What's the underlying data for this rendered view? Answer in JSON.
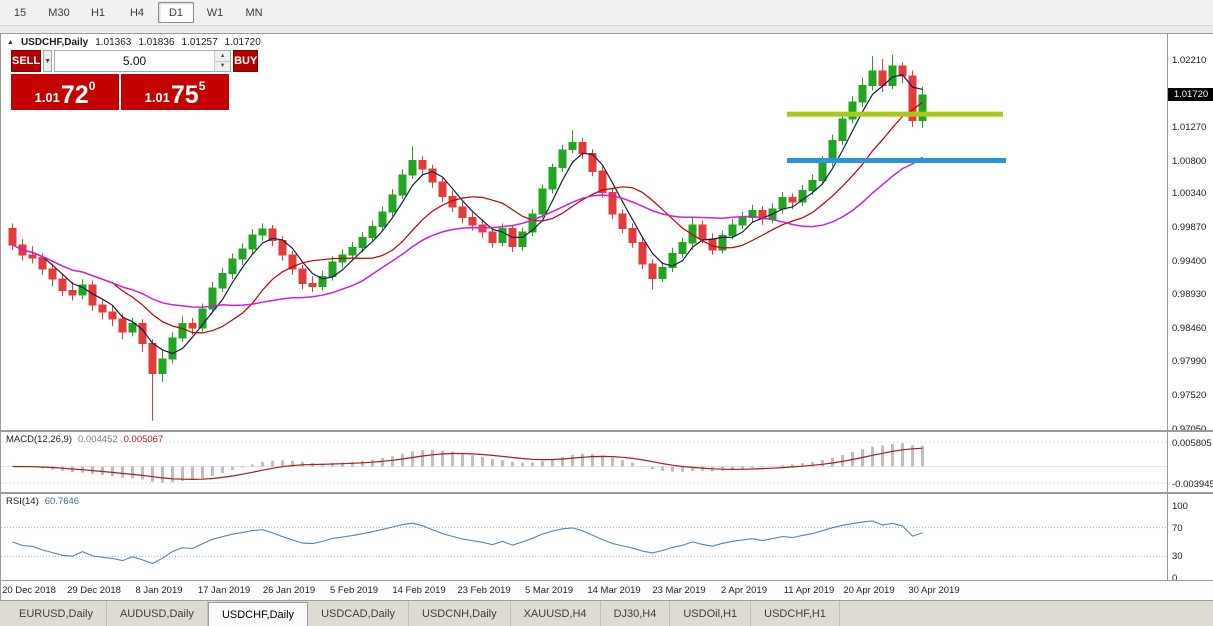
{
  "toolbar": {
    "timeframes": [
      {
        "label": "15",
        "active": false
      },
      {
        "label": "M30",
        "active": false
      },
      {
        "label": "H1",
        "active": false
      },
      {
        "label": "H4",
        "active": false
      },
      {
        "label": "D1",
        "active": true
      },
      {
        "label": "W1",
        "active": false
      },
      {
        "label": "MN",
        "active": false
      }
    ]
  },
  "chart_header": {
    "collapse_icon": "▲",
    "symbol": "USDCHF,Daily",
    "open": "1.01363",
    "high": "1.01836",
    "low": "1.01257",
    "close": "1.01720"
  },
  "trade_panel": {
    "sell_label": "SELL",
    "buy_label": "BUY",
    "volume": "5.00",
    "dropdown_icon": "▼",
    "spin_up": "▲",
    "spin_down": "▼",
    "sell_price": {
      "prefix": "1.01",
      "big": "72",
      "sup": "0"
    },
    "buy_price": {
      "prefix": "1.01",
      "big": "75",
      "sup": "5"
    }
  },
  "macd_display": {
    "label": "MACD(12,26,9)",
    "value_main": "0.004452",
    "value_signal": "0.005067"
  },
  "rsi_display": {
    "label": "RSI(14)",
    "value": "60.7646"
  },
  "tabs": [
    {
      "label": "EURUSD,Daily",
      "active": false
    },
    {
      "label": "AUDUSD,Daily",
      "active": false
    },
    {
      "label": "USDCHF,Daily",
      "active": true
    },
    {
      "label": "USDCAD,Daily",
      "active": false
    },
    {
      "label": "USDCNH,Daily",
      "active": false
    },
    {
      "label": "XAUUSD,H4",
      "active": false
    },
    {
      "label": "DJ30,H4",
      "active": false
    },
    {
      "label": "USDOil,H1",
      "active": false
    },
    {
      "label": "USDCHF,H1",
      "active": false
    }
  ],
  "chart_data": {
    "type": "candlestick",
    "symbol": "USDCHF",
    "timeframe": "Daily",
    "colors": {
      "up": "#1fa51f",
      "down": "#e33a3a"
    },
    "y_axis": {
      "top": 1.0257,
      "bottom": 0.9703,
      "labels": [
        1.0221,
        1.0127,
        1.008,
        1.0034,
        0.9987,
        0.994,
        0.9893,
        0.9846,
        0.9799,
        0.9752,
        0.9705
      ],
      "current": 1.0172,
      "current_label": "1.01720"
    },
    "x_axis": {
      "ticks": [
        {
          "index": 2,
          "label": "20 Dec 2018"
        },
        {
          "index": 8.5,
          "label": "29 Dec 2018"
        },
        {
          "index": 15,
          "label": "8 Jan 2019"
        },
        {
          "index": 21.5,
          "label": "17 Jan 2019"
        },
        {
          "index": 28,
          "label": "26 Jan 2019"
        },
        {
          "index": 34.5,
          "label": "5 Feb 2019"
        },
        {
          "index": 41,
          "label": "14 Feb 2019"
        },
        {
          "index": 47.5,
          "label": "23 Feb 2019"
        },
        {
          "index": 54,
          "label": "5 Mar 2019"
        },
        {
          "index": 60.5,
          "label": "14 Mar 2019"
        },
        {
          "index": 67,
          "label": "23 Mar 2019"
        },
        {
          "index": 73.5,
          "label": "2 Apr 2019"
        },
        {
          "index": 80,
          "label": "11 Apr 2019"
        },
        {
          "index": 86,
          "label": "20 Apr 2019"
        },
        {
          "index": 92.5,
          "label": "30 Apr 2019"
        }
      ]
    },
    "moving_averages": [
      {
        "period": 4,
        "color": "#1a1a4e",
        "width": 1.2
      },
      {
        "period": 11,
        "color": "#c00000",
        "width": 1.2
      },
      {
        "period": 22,
        "color": "#d020d0",
        "width": 1.5
      }
    ],
    "levels": [
      {
        "price": 1.0145,
        "color": "#aac816",
        "thickness": 5,
        "from_index": 77.8,
        "to_index": 99.4
      },
      {
        "price": 1.008,
        "color": "#2b93d8",
        "thickness": 5,
        "from_index": 77.8,
        "to_index": 99.7
      }
    ],
    "macd_panel": {
      "top": 0.0082,
      "bottom": -0.0056,
      "axis_values": [
        0.005805,
        -0.003945
      ],
      "axis_labels": [
        "0.005805",
        "-0.003945"
      ],
      "hist_color": "#bfbfbf",
      "signal_color": "#a22020"
    },
    "rsi_panel": {
      "line_color": "#4a86b8",
      "levels": [
        70,
        30
      ],
      "axis_values": [
        100,
        70,
        30,
        0
      ],
      "axis_labels": [
        "100",
        "70",
        "30",
        "0"
      ]
    },
    "candles": [
      [
        0.9985,
        0.9992,
        0.9955,
        0.9962
      ],
      [
        0.9962,
        0.997,
        0.994,
        0.9948
      ],
      [
        0.9948,
        0.996,
        0.9936,
        0.9944
      ],
      [
        0.9944,
        0.995,
        0.992,
        0.9928
      ],
      [
        0.9928,
        0.9936,
        0.9904,
        0.9914
      ],
      [
        0.9914,
        0.9922,
        0.989,
        0.9898
      ],
      [
        0.9898,
        0.991,
        0.9884,
        0.9892
      ],
      [
        0.9892,
        0.9914,
        0.9886,
        0.9906
      ],
      [
        0.9906,
        0.9912,
        0.987,
        0.9878
      ],
      [
        0.9878,
        0.9886,
        0.9858,
        0.9868
      ],
      [
        0.9868,
        0.9876,
        0.9848,
        0.9858
      ],
      [
        0.9858,
        0.9866,
        0.983,
        0.984
      ],
      [
        0.984,
        0.986,
        0.9834,
        0.9852
      ],
      [
        0.9852,
        0.9858,
        0.9812,
        0.9824
      ],
      [
        0.9824,
        0.983,
        0.9716,
        0.9782
      ],
      [
        0.9782,
        0.9814,
        0.977,
        0.9802
      ],
      [
        0.9802,
        0.984,
        0.9796,
        0.9832
      ],
      [
        0.9832,
        0.9862,
        0.9826,
        0.9852
      ],
      [
        0.9852,
        0.986,
        0.9836,
        0.9846
      ],
      [
        0.9846,
        0.988,
        0.984,
        0.9872
      ],
      [
        0.9872,
        0.991,
        0.9866,
        0.9902
      ],
      [
        0.9902,
        0.993,
        0.9896,
        0.9922
      ],
      [
        0.9922,
        0.995,
        0.9914,
        0.9942
      ],
      [
        0.9942,
        0.9964,
        0.9934,
        0.9956
      ],
      [
        0.9956,
        0.9984,
        0.995,
        0.9976
      ],
      [
        0.9976,
        0.9992,
        0.9968,
        0.9984
      ],
      [
        0.9984,
        0.999,
        0.996,
        0.9968
      ],
      [
        0.9968,
        0.9974,
        0.994,
        0.9948
      ],
      [
        0.9948,
        0.9954,
        0.992,
        0.9928
      ],
      [
        0.9928,
        0.9934,
        0.99,
        0.9908
      ],
      [
        0.9908,
        0.9918,
        0.9896,
        0.9904
      ],
      [
        0.9904,
        0.9926,
        0.9898,
        0.9918
      ],
      [
        0.9918,
        0.9946,
        0.9912,
        0.9938
      ],
      [
        0.9938,
        0.9956,
        0.993,
        0.9948
      ],
      [
        0.9948,
        0.9966,
        0.9942,
        0.9958
      ],
      [
        0.9958,
        0.998,
        0.9952,
        0.9972
      ],
      [
        0.9972,
        0.9996,
        0.9966,
        0.9988
      ],
      [
        0.9988,
        1.0016,
        0.9982,
        1.0008
      ],
      [
        1.0008,
        1.004,
        1.0002,
        1.0032
      ],
      [
        1.0032,
        1.0068,
        1.0026,
        1.006
      ],
      [
        1.006,
        1.01,
        1.0054,
        1.008
      ],
      [
        1.008,
        1.0086,
        1.0058,
        1.0068
      ],
      [
        1.0068,
        1.0074,
        1.0042,
        1.005
      ],
      [
        1.005,
        1.0056,
        1.0022,
        1.003
      ],
      [
        1.003,
        1.0038,
        1.0008,
        1.0015
      ],
      [
        1.0015,
        1.0022,
        0.9992,
        1.0
      ],
      [
        1.0,
        1.0008,
        0.9982,
        0.999
      ],
      [
        0.999,
        0.9998,
        0.9972,
        0.998
      ],
      [
        0.998,
        0.9986,
        0.9958,
        0.9965
      ],
      [
        0.9965,
        0.9992,
        0.996,
        0.9985
      ],
      [
        0.9985,
        0.999,
        0.9952,
        0.996
      ],
      [
        0.996,
        0.9986,
        0.9954,
        0.998
      ],
      [
        0.998,
        1.0012,
        0.9974,
        1.0005
      ],
      [
        1.0005,
        1.0046,
        1.0,
        1.004
      ],
      [
        1.004,
        1.0076,
        1.0034,
        1.007
      ],
      [
        1.007,
        1.0102,
        1.0064,
        1.0095
      ],
      [
        1.0095,
        1.0122,
        1.009,
        1.0105
      ],
      [
        1.0105,
        1.0112,
        1.0082,
        1.009
      ],
      [
        1.009,
        1.0096,
        1.0058,
        1.0065
      ],
      [
        1.0065,
        1.0072,
        1.0028,
        1.0035
      ],
      [
        1.0035,
        1.0042,
        0.9998,
        1.0005
      ],
      [
        1.0005,
        1.0012,
        0.9978,
        0.9985
      ],
      [
        0.9985,
        0.9992,
        0.9958,
        0.9965
      ],
      [
        0.9965,
        0.9972,
        0.9928,
        0.9935
      ],
      [
        0.9935,
        0.9942,
        0.99,
        0.9915
      ],
      [
        0.9915,
        0.9938,
        0.991,
        0.993
      ],
      [
        0.993,
        0.9958,
        0.9924,
        0.995
      ],
      [
        0.995,
        0.9972,
        0.9944,
        0.9965
      ],
      [
        0.9965,
        1.0,
        0.9955,
        0.999
      ],
      [
        0.999,
        0.9996,
        0.9964,
        0.997
      ],
      [
        0.997,
        0.9978,
        0.9948,
        0.9955
      ],
      [
        0.9955,
        0.9982,
        0.995,
        0.9975
      ],
      [
        0.9975,
        0.9998,
        0.997,
        0.999
      ],
      [
        0.999,
        1.0008,
        0.9984,
        1.0
      ],
      [
        1.0,
        1.0018,
        0.9994,
        1.001
      ],
      [
        1.001,
        1.0016,
        0.999,
        0.9998
      ],
      [
        0.9998,
        1.002,
        0.9992,
        1.0012
      ],
      [
        1.0012,
        1.0036,
        1.0006,
        1.0028
      ],
      [
        1.0028,
        1.0034,
        1.0012,
        1.0022
      ],
      [
        1.0022,
        1.0046,
        1.0016,
        1.0038
      ],
      [
        1.0038,
        1.006,
        1.0032,
        1.0052
      ],
      [
        1.0052,
        1.0086,
        1.0046,
        1.0078
      ],
      [
        1.0078,
        1.0116,
        1.0072,
        1.0108
      ],
      [
        1.0108,
        1.0146,
        1.0102,
        1.0138
      ],
      [
        1.0138,
        1.017,
        1.0132,
        1.0162
      ],
      [
        1.0162,
        1.0196,
        1.0155,
        1.0185
      ],
      [
        1.0185,
        1.0226,
        1.0178,
        1.0205
      ],
      [
        1.0205,
        1.0222,
        1.0176,
        1.0185
      ],
      [
        1.0185,
        1.0228,
        1.018,
        1.0212
      ],
      [
        1.0212,
        1.0218,
        1.0188,
        1.0198
      ],
      [
        1.0198,
        1.0206,
        1.0127,
        1.0136
      ],
      [
        1.01363,
        1.01836,
        1.01257,
        1.0172
      ]
    ]
  }
}
